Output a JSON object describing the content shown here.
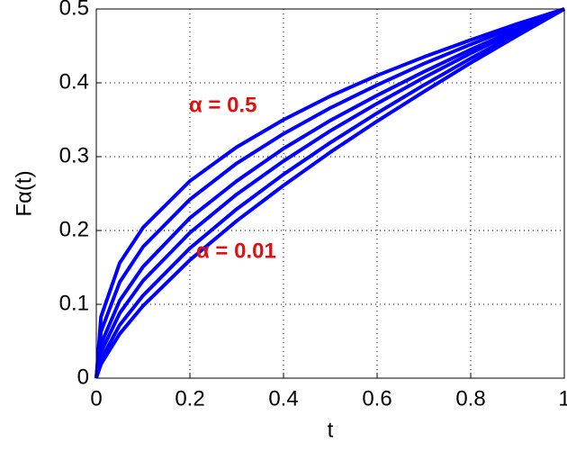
{
  "chart_data": {
    "type": "line",
    "x_label": "t",
    "y_label": "Fα(t)",
    "annotations": [
      "α = 0.5",
      "α = 0.01"
    ],
    "x": [
      0,
      0.01,
      0.05,
      0.1,
      0.2,
      0.3,
      0.4,
      0.5,
      0.6,
      0.7,
      0.8,
      0.9,
      1
    ],
    "series": [
      {
        "color": "#0000ff",
        "values": [
          0,
          0.083,
          0.156,
          0.204,
          0.267,
          0.313,
          0.35,
          0.382,
          0.41,
          0.435,
          0.458,
          0.48,
          0.5
        ]
      },
      {
        "color": "#0000ff",
        "values": [
          0,
          0.063,
          0.13,
          0.178,
          0.242,
          0.291,
          0.331,
          0.366,
          0.397,
          0.426,
          0.452,
          0.477,
          0.5
        ]
      },
      {
        "color": "#0000ff",
        "values": [
          0,
          0.046,
          0.105,
          0.151,
          0.217,
          0.267,
          0.311,
          0.349,
          0.383,
          0.415,
          0.445,
          0.473,
          0.5
        ]
      },
      {
        "color": "#0000ff",
        "values": [
          0,
          0.035,
          0.088,
          0.132,
          0.197,
          0.249,
          0.294,
          0.335,
          0.372,
          0.407,
          0.44,
          0.471,
          0.5
        ]
      },
      {
        "color": "#0000ff",
        "values": [
          0,
          0.025,
          0.072,
          0.112,
          0.176,
          0.229,
          0.276,
          0.319,
          0.359,
          0.397,
          0.433,
          0.467,
          0.5
        ]
      },
      {
        "color": "#0000ff",
        "values": [
          0,
          0.019,
          0.06,
          0.098,
          0.16,
          0.213,
          0.261,
          0.306,
          0.348,
          0.388,
          0.427,
          0.464,
          0.5
        ]
      }
    ],
    "xlim": [
      0,
      1
    ],
    "xticks": [
      0,
      0.2,
      0.4,
      0.6,
      0.8,
      1
    ],
    "ylim": [
      0,
      0.5
    ],
    "yticks": [
      0,
      0.1,
      0.2,
      0.3,
      0.4,
      0.5
    ],
    "grid": true
  }
}
